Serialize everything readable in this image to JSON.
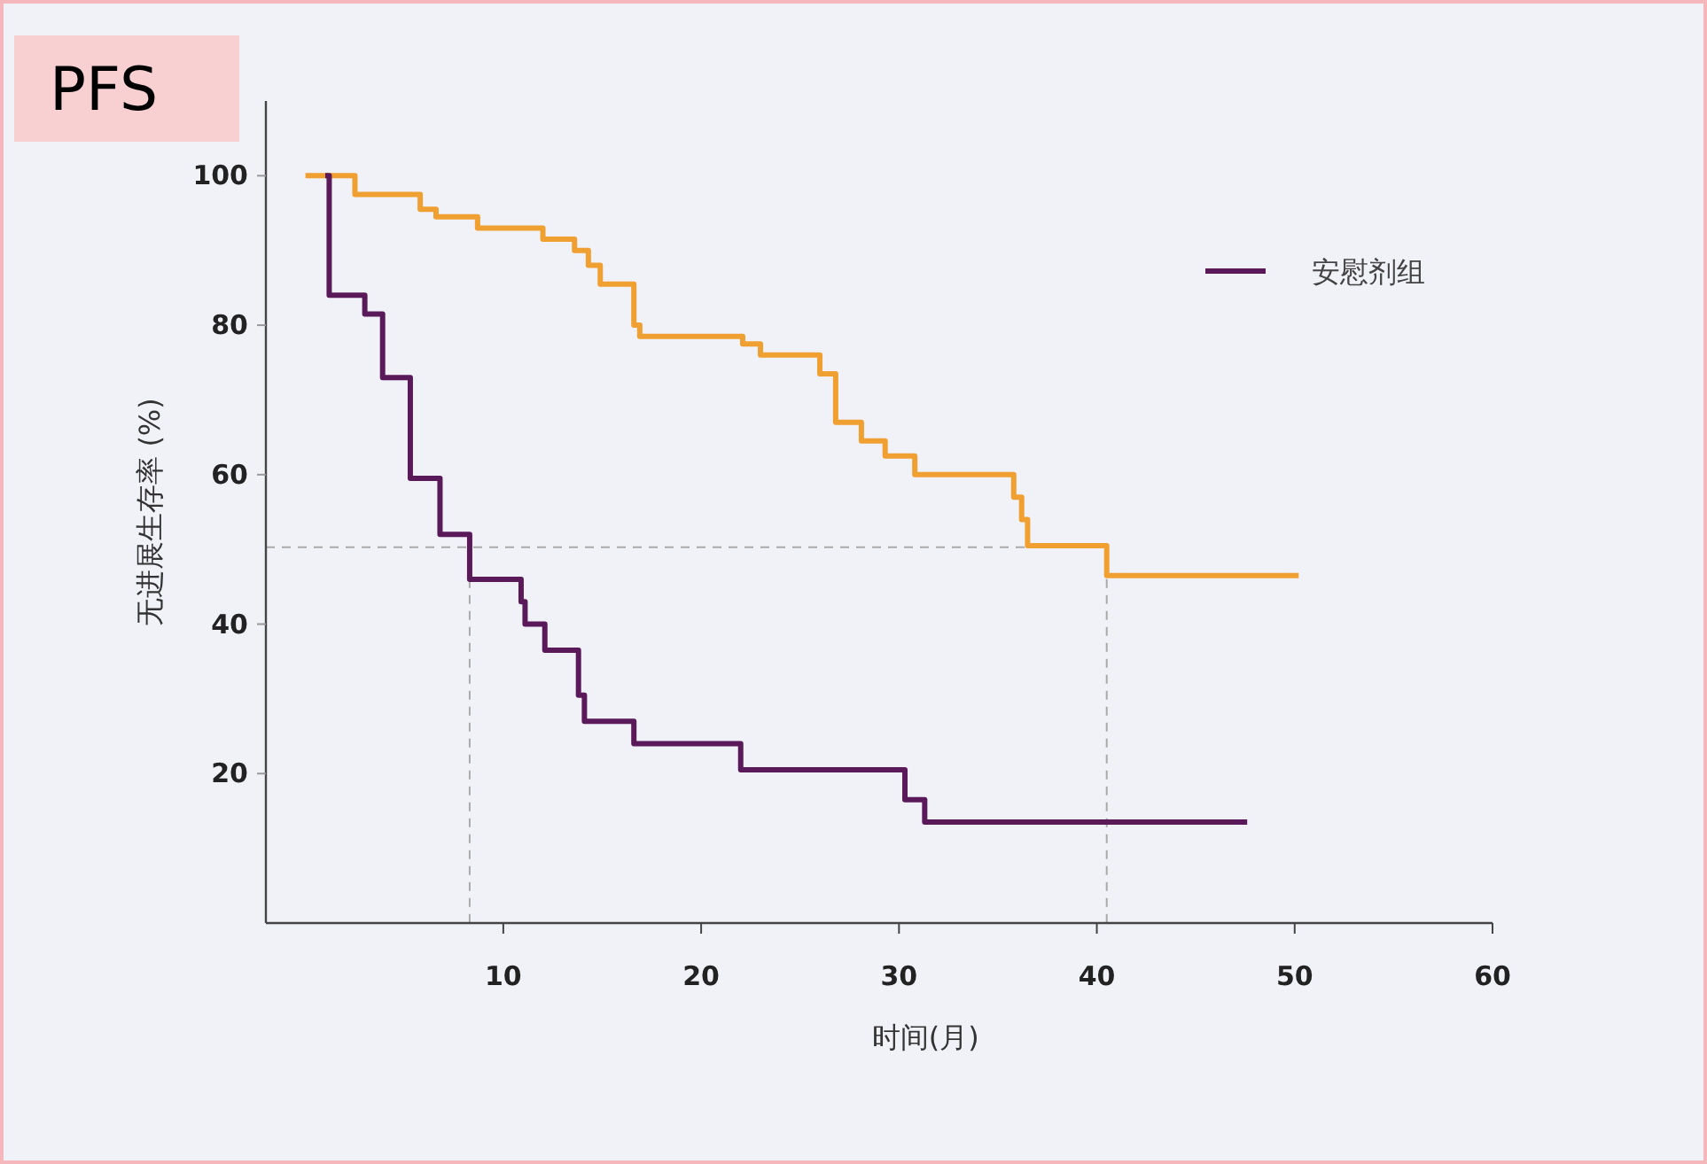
{
  "chart_data": {
    "type": "step",
    "title": "PFS",
    "xlabel": "时间(月)",
    "ylabel": "无进展生存率 (%)",
    "xlim": [
      -2,
      60
    ],
    "xticks": [
      10,
      20,
      30,
      40,
      50,
      60
    ],
    "ylim": [
      0,
      110
    ],
    "yticks": [
      20,
      40,
      60,
      80,
      100
    ],
    "grid": false,
    "legend": "top right",
    "marker": "none",
    "line_style": "solid",
    "series": [
      {
        "color": "#f0a030",
        "x": [
          0,
          2.5,
          5.8,
          6.6,
          8.7,
          12.0,
          13.6,
          14.3,
          14.9,
          16.6,
          16.9,
          22.1,
          23.0,
          26.0,
          26.8,
          28.1,
          29.3,
          30.8,
          35.8,
          36.2,
          36.5,
          40.5,
          50.2
        ],
        "values": [
          100,
          97.5,
          95.5,
          94.5,
          93,
          91.5,
          90,
          88,
          85.5,
          80,
          78.5,
          77.5,
          76,
          73.5,
          67,
          64.5,
          62.5,
          60,
          57,
          54,
          50.5,
          46.5,
          46.5
        ]
      },
      {
        "name": "安慰剂组",
        "color": "#5a1a5a",
        "x": [
          1.0,
          1.2,
          3.0,
          3.9,
          5.3,
          6.8,
          8.3,
          10.9,
          11.1,
          12.1,
          13.8,
          14.1,
          16.6,
          22.0,
          30.3,
          31.3,
          47.6
        ],
        "values": [
          100,
          84,
          81.5,
          73,
          59.5,
          52,
          46,
          43,
          40,
          36.5,
          30.5,
          27,
          24,
          20.5,
          16.5,
          13.5,
          13.5
        ]
      }
    ],
    "ref_lines": [
      {
        "axis": "y",
        "value": 50.3,
        "line_style": "dashed",
        "color": "#aaaaaa"
      },
      {
        "axis": "x",
        "value": 8.3,
        "line_style": "dashed",
        "color": "#aaaaaa"
      },
      {
        "axis": "x",
        "value": 40.5,
        "line_style": "dashed",
        "color": "#aaaaaa"
      }
    ]
  }
}
